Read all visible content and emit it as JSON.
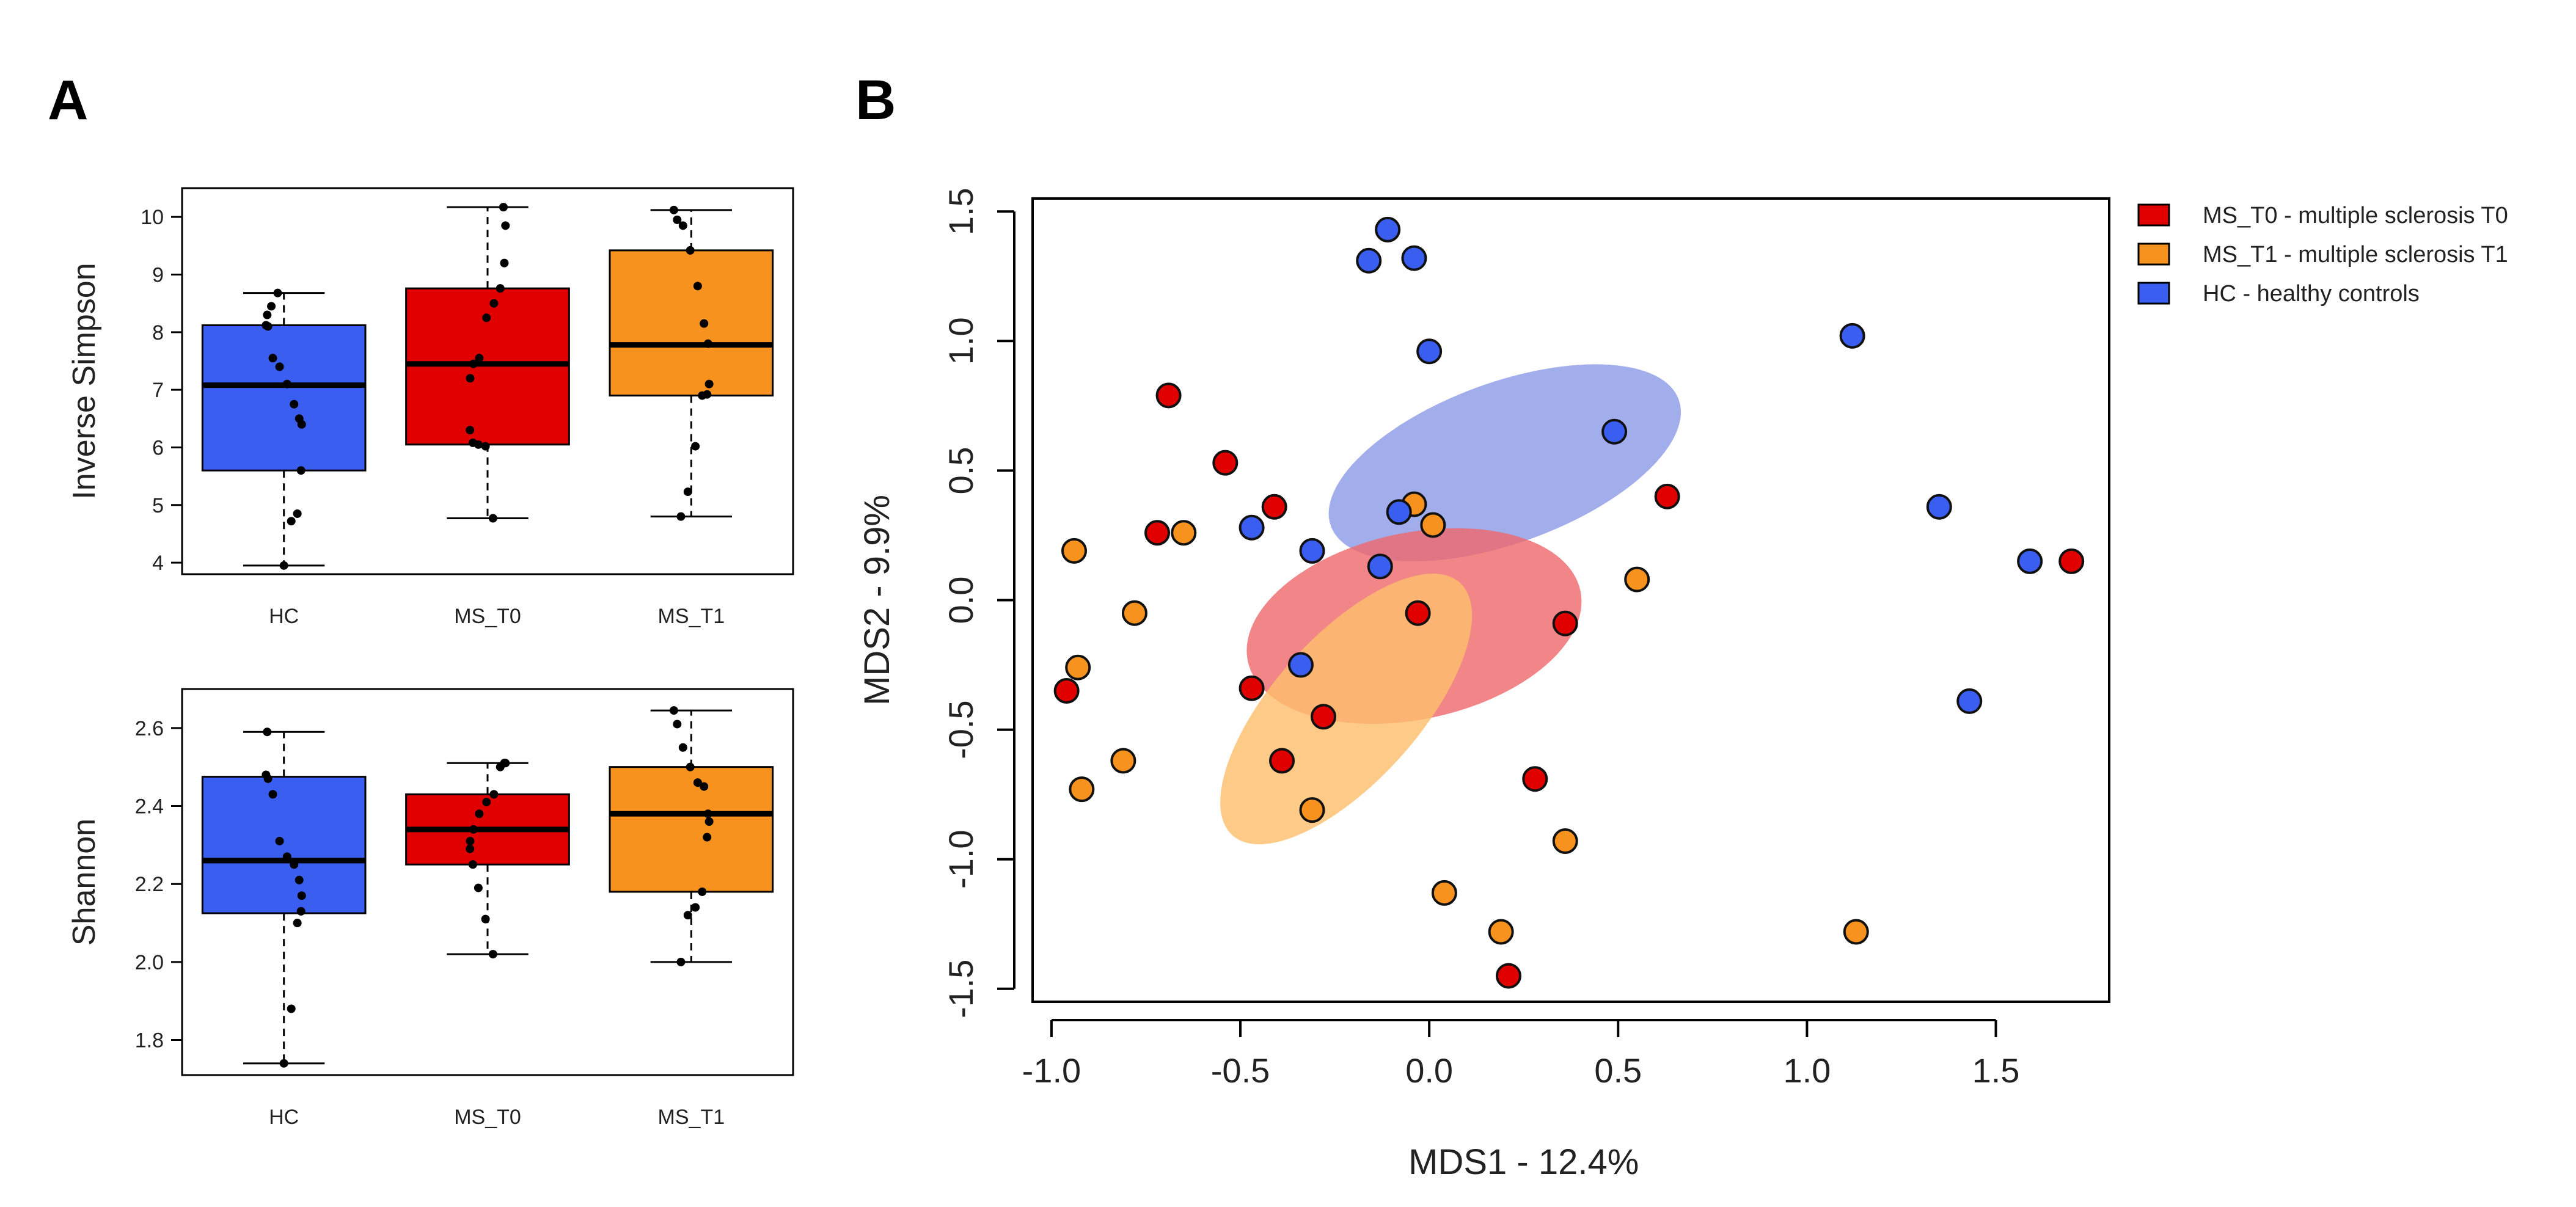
{
  "panels": {
    "a": {
      "letter": "A"
    },
    "b": {
      "letter": "B"
    }
  },
  "colors": {
    "hc": "#3A5FF0",
    "ms_t0": "#E00000",
    "ms_t1": "#F7921E",
    "hc_ellipse": "#8E9BE8",
    "t0_ellipse": "#EE6A6E",
    "t1_ellipse": "#FDBE6E"
  },
  "chart_data": [
    {
      "type": "box",
      "ylabel": "Inverse Simpson",
      "categories": [
        "HC",
        "MS_T0",
        "MS_T1"
      ],
      "ylim": [
        3.8,
        10.5
      ],
      "yticks": [
        4,
        5,
        6,
        7,
        8,
        9,
        10
      ],
      "boxes": [
        {
          "name": "HC",
          "color": "#3A5FF0",
          "min": 3.95,
          "q1": 5.6,
          "median": 7.08,
          "q3": 8.12,
          "max": 8.68,
          "points": [
            3.95,
            4.72,
            4.85,
            5.6,
            6.4,
            6.5,
            6.75,
            7.1,
            7.4,
            7.55,
            8.1,
            8.12,
            8.3,
            8.45,
            8.68
          ]
        },
        {
          "name": "MS_T0",
          "color": "#E00000",
          "min": 4.77,
          "q1": 6.05,
          "median": 7.45,
          "q3": 8.76,
          "max": 10.17,
          "points": [
            4.77,
            6.02,
            6.05,
            6.08,
            6.3,
            7.2,
            7.45,
            7.55,
            8.25,
            8.5,
            8.76,
            9.2,
            9.85,
            10.17
          ]
        },
        {
          "name": "MS_T1",
          "color": "#F7921E",
          "min": 4.8,
          "q1": 6.9,
          "median": 7.78,
          "q3": 9.42,
          "max": 10.12,
          "points": [
            4.8,
            5.23,
            6.02,
            6.9,
            6.92,
            7.1,
            7.8,
            8.15,
            8.8,
            9.42,
            9.85,
            9.95,
            10.12
          ]
        }
      ]
    },
    {
      "type": "box",
      "ylabel": "Shannon",
      "categories": [
        "HC",
        "MS_T0",
        "MS_T1"
      ],
      "ylim": [
        1.71,
        2.7
      ],
      "yticks": [
        1.8,
        2.0,
        2.2,
        2.4,
        2.6
      ],
      "ytick_labels": [
        "1.8",
        "2.0",
        "2.2",
        "2.4",
        "2.6"
      ],
      "boxes": [
        {
          "name": "HC",
          "color": "#3A5FF0",
          "min": 1.74,
          "q1": 2.125,
          "median": 2.26,
          "q3": 2.475,
          "max": 2.59,
          "points": [
            1.74,
            1.88,
            2.1,
            2.13,
            2.17,
            2.21,
            2.25,
            2.27,
            2.31,
            2.43,
            2.47,
            2.48,
            2.59
          ]
        },
        {
          "name": "MS_T0",
          "color": "#E00000",
          "min": 2.02,
          "q1": 2.25,
          "median": 2.34,
          "q3": 2.43,
          "max": 2.51,
          "points": [
            2.02,
            2.11,
            2.19,
            2.25,
            2.29,
            2.31,
            2.34,
            2.38,
            2.41,
            2.43,
            2.5,
            2.51,
            2.51
          ]
        },
        {
          "name": "MS_T1",
          "color": "#F7921E",
          "min": 2.0,
          "q1": 2.18,
          "median": 2.38,
          "q3": 2.5,
          "max": 2.645,
          "points": [
            2.0,
            2.12,
            2.14,
            2.18,
            2.32,
            2.36,
            2.38,
            2.45,
            2.46,
            2.5,
            2.55,
            2.61,
            2.645
          ]
        }
      ]
    },
    {
      "type": "scatter",
      "xlabel": "MDS1 - 12.4%",
      "ylabel": "MDS2 - 9.9%",
      "xlim": [
        -1.05,
        1.8
      ],
      "ylim": [
        -1.55,
        1.55
      ],
      "xticks": [
        -1.0,
        -0.5,
        0.0,
        0.5,
        1.0,
        1.5
      ],
      "xtick_labels": [
        "-1.0",
        "-0.5",
        "0.0",
        "0.5",
        "1.0",
        "1.5"
      ],
      "yticks": [
        -1.5,
        -1.0,
        -0.5,
        0.0,
        0.5,
        1.0,
        1.5
      ],
      "ytick_labels": [
        "-1.5",
        "-1.0",
        "-0.5",
        "0.0",
        "0.5",
        "1.0",
        "1.5"
      ],
      "legend": [
        {
          "label": "MS_T0 - multiple sclerosis T0",
          "color": "#E00000"
        },
        {
          "label": "MS_T1 - multiple sclerosis T1",
          "color": "#F7921E"
        },
        {
          "label": "HC - healthy controls",
          "color": "#3A5FF0"
        }
      ],
      "ellipses": [
        {
          "group": "HC",
          "color": "#8E9BE8",
          "cx": 0.2,
          "cy": 0.53,
          "rx": 0.49,
          "ry": 0.31,
          "angle_deg": -20
        },
        {
          "group": "MS_T0",
          "color": "#EE6A6E",
          "cx": -0.04,
          "cy": -0.1,
          "rx": 0.45,
          "ry": 0.36,
          "angle_deg": -12
        },
        {
          "group": "MS_T1",
          "color": "#FDBE6E",
          "cx": -0.22,
          "cy": -0.42,
          "rx": 0.45,
          "ry": 0.28,
          "angle_deg": -48
        }
      ],
      "series": [
        {
          "name": "MS_T0",
          "color": "#E00000",
          "points": [
            [
              -0.69,
              0.79
            ],
            [
              -0.54,
              0.53
            ],
            [
              -0.41,
              0.36
            ],
            [
              -0.72,
              0.26
            ],
            [
              0.63,
              0.4
            ],
            [
              1.7,
              0.15
            ],
            [
              -0.03,
              -0.05
            ],
            [
              0.36,
              -0.09
            ],
            [
              -0.96,
              -0.35
            ],
            [
              -0.47,
              -0.34
            ],
            [
              -0.28,
              -0.45
            ],
            [
              -0.39,
              -0.62
            ],
            [
              0.28,
              -0.69
            ],
            [
              0.21,
              -1.45
            ]
          ]
        },
        {
          "name": "MS_T1",
          "color": "#F7921E",
          "points": [
            [
              -0.65,
              0.26
            ],
            [
              -0.94,
              0.19
            ],
            [
              -0.04,
              0.37
            ],
            [
              0.01,
              0.29
            ],
            [
              -0.78,
              -0.05
            ],
            [
              0.55,
              0.08
            ],
            [
              -0.93,
              -0.26
            ],
            [
              -0.81,
              -0.62
            ],
            [
              -0.92,
              -0.73
            ],
            [
              -0.31,
              -0.81
            ],
            [
              0.36,
              -0.93
            ],
            [
              0.04,
              -1.13
            ],
            [
              0.19,
              -1.28
            ],
            [
              1.13,
              -1.28
            ]
          ]
        },
        {
          "name": "HC",
          "color": "#3A5FF0",
          "points": [
            [
              -0.11,
              1.43
            ],
            [
              -0.16,
              1.31
            ],
            [
              -0.04,
              1.32
            ],
            [
              0.0,
              0.96
            ],
            [
              1.12,
              1.02
            ],
            [
              0.49,
              0.65
            ],
            [
              -0.47,
              0.28
            ],
            [
              -0.31,
              0.19
            ],
            [
              -0.08,
              0.34
            ],
            [
              -0.13,
              0.13
            ],
            [
              1.35,
              0.36
            ],
            [
              1.59,
              0.15
            ],
            [
              -0.34,
              -0.25
            ],
            [
              1.43,
              -0.39
            ]
          ]
        }
      ]
    }
  ]
}
